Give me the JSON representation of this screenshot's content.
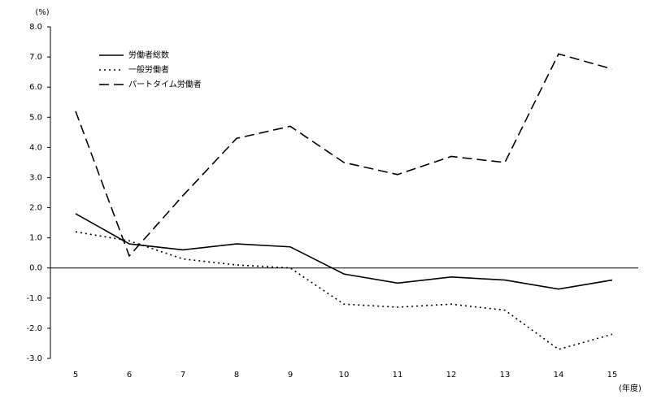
{
  "chart_data": {
    "type": "line",
    "y_unit": "(%)",
    "x_unit": "(年度)",
    "categories": [
      "5",
      "6",
      "7",
      "8",
      "9",
      "10",
      "11",
      "12",
      "13",
      "14",
      "15"
    ],
    "series": [
      {
        "name": "労働者総数",
        "color": "#000000",
        "dash": "solid",
        "values": [
          1.8,
          0.8,
          0.6,
          0.8,
          0.7,
          -0.2,
          -0.5,
          -0.3,
          -0.4,
          -0.7,
          -0.4
        ]
      },
      {
        "name": "一般労働者",
        "color": "#000000",
        "dash": "dotted",
        "values": [
          1.2,
          0.9,
          0.3,
          0.1,
          0.0,
          -1.2,
          -1.3,
          -1.2,
          -1.4,
          -2.7,
          -2.2
        ]
      },
      {
        "name": "パートタイム労働者",
        "color": "#000000",
        "dash": "dashed",
        "values": [
          5.2,
          0.4,
          2.4,
          4.3,
          4.7,
          3.5,
          3.1,
          3.7,
          3.5,
          7.1,
          6.6
        ]
      }
    ],
    "ylim": [
      -3,
      8
    ],
    "yticks": [
      {
        "value": 8,
        "label": "8.0"
      },
      {
        "value": 7,
        "label": "7.0"
      },
      {
        "value": 6,
        "label": "6.0"
      },
      {
        "value": 5,
        "label": "5.0"
      },
      {
        "value": 4,
        "label": "4.0"
      },
      {
        "value": 3,
        "label": "3.0"
      },
      {
        "value": 2,
        "label": "2.0"
      },
      {
        "value": 1,
        "label": "1.0"
      },
      {
        "value": 0,
        "label": "0.0"
      },
      {
        "value": -1,
        "label": "-1.0"
      },
      {
        "value": -2,
        "label": "-2.0"
      },
      {
        "value": -3,
        "label": "-3.0"
      }
    ],
    "grid": false
  }
}
